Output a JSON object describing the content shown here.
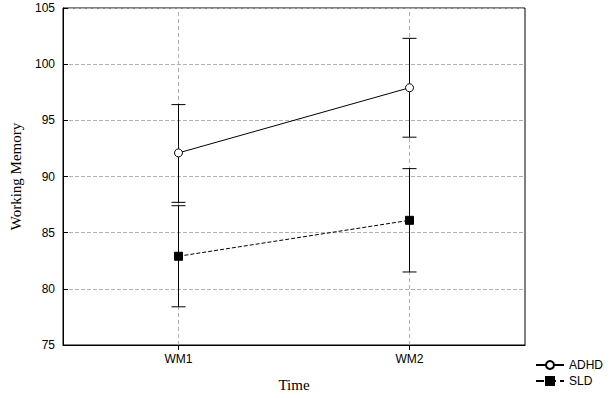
{
  "chart_data": {
    "type": "line",
    "x_label": "Time",
    "y_label": "Working Memory",
    "categories": [
      "WM1",
      "WM2"
    ],
    "series": [
      {
        "name": "ADHD",
        "color": "#000000",
        "marker": "circle_open",
        "line_style": "solid",
        "values": [
          92.1,
          97.9
        ],
        "lower": [
          87.7,
          93.5
        ],
        "upper": [
          96.4,
          102.3
        ]
      },
      {
        "name": "SLD",
        "color": "#000000",
        "marker": "square",
        "line_style": "dashed",
        "values": [
          82.9,
          86.1
        ],
        "lower": [
          78.4,
          81.5
        ],
        "upper": [
          87.4,
          90.7
        ]
      }
    ],
    "ylim": [
      75,
      105
    ],
    "yticks": [
      75,
      80,
      85,
      90,
      95,
      100,
      105
    ],
    "grid": true,
    "legend": "lower right"
  }
}
